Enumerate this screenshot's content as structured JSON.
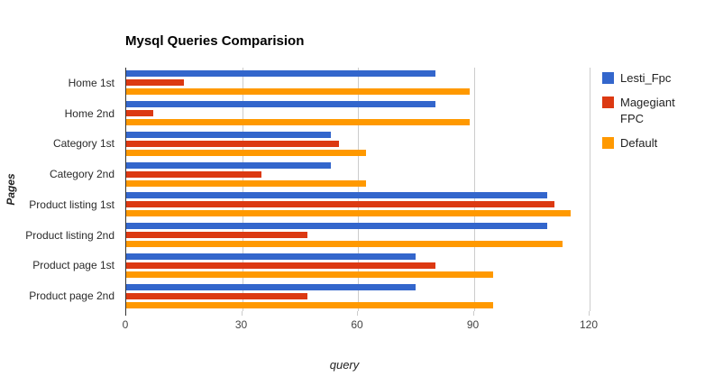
{
  "colors": {
    "series_blue": "#3366CC",
    "series_red": "#DC3912",
    "series_orange": "#FF9900",
    "gridline": "#CCCCCC",
    "axis_line": "#333333",
    "label_text": "#2A2A2A",
    "tick_text": "#444444",
    "background": "#FFFFFF"
  },
  "chart_data": {
    "type": "bar",
    "orientation": "horizontal",
    "title": "Mysql Queries Comparision",
    "xlabel": "query",
    "ylabel": "Pages",
    "xlim": [
      0,
      120
    ],
    "xticks": [
      0,
      30,
      60,
      90,
      120
    ],
    "grid": true,
    "legend_position": "right",
    "categories": [
      "Home 1st",
      "Home 2nd",
      "Category 1st",
      "Category 2nd",
      "Product listing 1st",
      "Product listing 2nd",
      "Product page 1st",
      "Product page 2nd"
    ],
    "series": [
      {
        "name": "Lesti_Fpc",
        "color": "#3366CC",
        "values": [
          80,
          80,
          53,
          53,
          109,
          109,
          75,
          75
        ]
      },
      {
        "name": "Magegiant FPC",
        "color": "#DC3912",
        "values": [
          15,
          7,
          55,
          35,
          111,
          47,
          80,
          47
        ]
      },
      {
        "name": "Default",
        "color": "#FF9900",
        "values": [
          89,
          89,
          62,
          62,
          115,
          113,
          95,
          95
        ]
      }
    ]
  }
}
